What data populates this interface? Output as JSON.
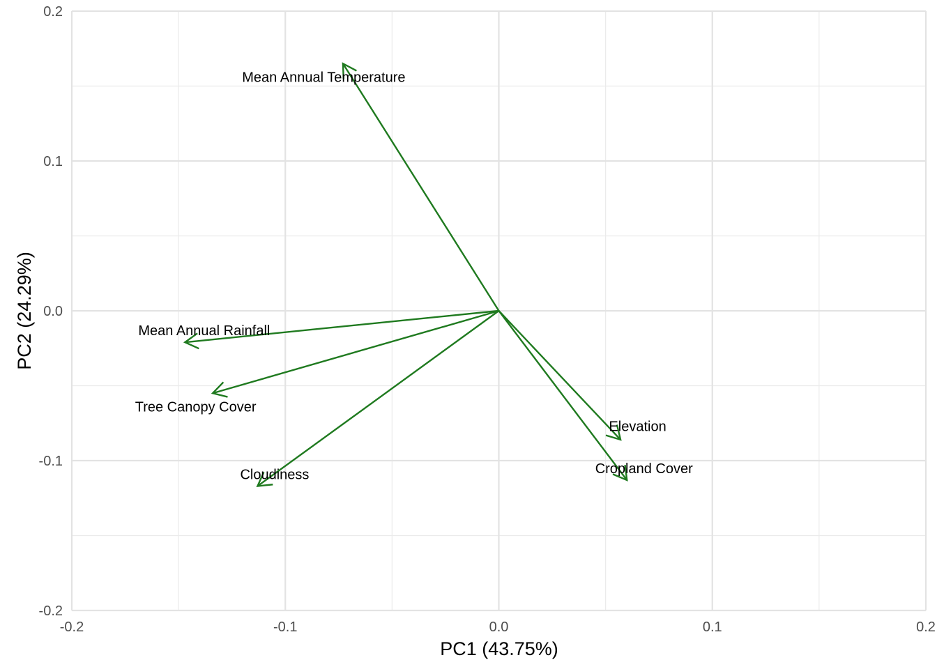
{
  "chart_data": {
    "type": "scatter",
    "subtype": "pca-loadings-biplot",
    "title": "",
    "xlabel": "PC1 (43.75%)",
    "ylabel": "PC2 (24.29%)",
    "xlim": [
      -0.2,
      0.2
    ],
    "ylim": [
      -0.2,
      0.2
    ],
    "x_ticks": [
      -0.2,
      -0.1,
      0.0,
      0.1,
      0.2
    ],
    "x_tick_labels": [
      "-0.2",
      "-0.1",
      "0.0",
      "0.1",
      "0.2"
    ],
    "y_ticks": [
      -0.2,
      -0.1,
      0.0,
      0.1,
      0.2
    ],
    "y_tick_labels": [
      "-0.2",
      "-0.1",
      "0.0",
      "0.1",
      "0.2"
    ],
    "grid": true,
    "arrow_color": "#1f7a1f",
    "vectors": [
      {
        "name": "Mean Annual Temperature",
        "x": -0.073,
        "y": 0.165,
        "label_x": -0.082,
        "label_y": 0.156
      },
      {
        "name": "Mean Annual Rainfall",
        "x": -0.147,
        "y": -0.021,
        "label_x": -0.138,
        "label_y": -0.013
      },
      {
        "name": "Tree Canopy Cover",
        "x": -0.134,
        "y": -0.055,
        "label_x": -0.142,
        "label_y": -0.064
      },
      {
        "name": "Cloudiness",
        "x": -0.113,
        "y": -0.117,
        "label_x": -0.105,
        "label_y": -0.109
      },
      {
        "name": "Elevation",
        "x": 0.057,
        "y": -0.086,
        "label_x": 0.065,
        "label_y": -0.077
      },
      {
        "name": "Cropland Cover",
        "x": 0.06,
        "y": -0.113,
        "label_x": 0.068,
        "label_y": -0.105
      }
    ]
  }
}
